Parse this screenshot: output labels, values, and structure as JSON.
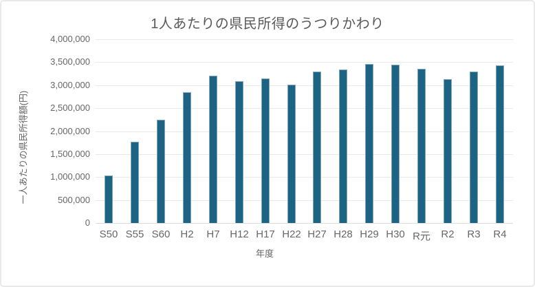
{
  "chart_data": {
    "type": "bar",
    "title": "1人あたりの県民所得のうつりかわり",
    "xlabel": "年度",
    "ylabel": "一人あたりの県民所得額(円)",
    "categories": [
      "S50",
      "S55",
      "S60",
      "H2",
      "H7",
      "H12",
      "H17",
      "H22",
      "H27",
      "H28",
      "H29",
      "H30",
      "R元",
      "R2",
      "R3",
      "R4"
    ],
    "values": [
      1030000,
      1770000,
      2240000,
      2850000,
      3210000,
      3080000,
      3150000,
      3010000,
      3300000,
      3340000,
      3460000,
      3440000,
      3350000,
      3130000,
      3300000,
      3430000
    ],
    "ylim": [
      0,
      4000000
    ],
    "ytick_interval": 500000,
    "ytick_labels": [
      "0",
      "500,000",
      "1,000,000",
      "1,500,000",
      "2,000,000",
      "2,500,000",
      "3,000,000",
      "3,500,000",
      "4,000,000"
    ],
    "grid": "horizontal",
    "legend": "none",
    "colors": {
      "bar_fill": "#1d6484",
      "bar_edge": "#7fa6ba",
      "gridline": "#e9e9e9",
      "axis_line": "#dcdcdc",
      "tick_text": "#666666",
      "title_text": "#595959",
      "background": "#ffffff",
      "card_border": "#e9e9e9"
    }
  }
}
